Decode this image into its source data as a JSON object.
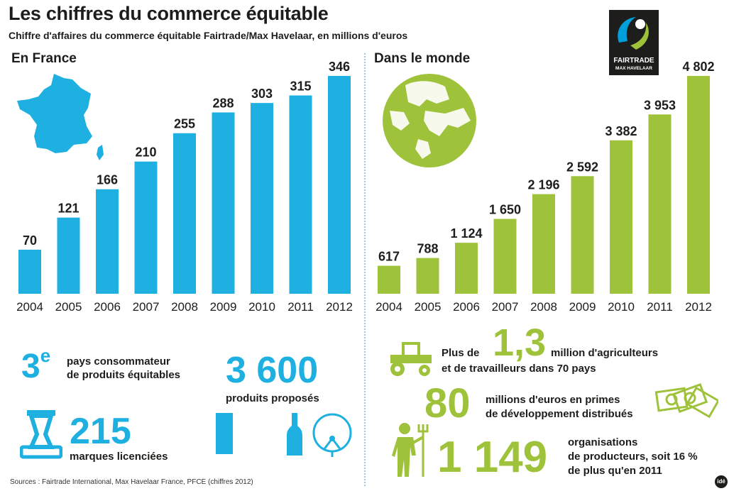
{
  "title": "Les chiffres du commerce équitable",
  "subtitle": "Chiffre d'affaires du commerce équitable Fairtrade/Max Havelaar, en millions d'euros",
  "logo": {
    "line1": "FAIRTRADE",
    "line2": "MAX HAVELAAR"
  },
  "credit": "idé",
  "colors": {
    "france": "#1eb0e0",
    "world": "#9ec23a"
  },
  "icons": [
    "france-map-icon",
    "globe-icon",
    "fairtrade-logo-icon",
    "stamp-icon",
    "milk-carton-icon",
    "bottle-icon",
    "cotton-icon",
    "tractor-icon",
    "banknotes-icon",
    "farmer-icon"
  ],
  "chart_data": [
    {
      "type": "bar",
      "title": "En France",
      "categories": [
        "2004",
        "2005",
        "2006",
        "2007",
        "2008",
        "2009",
        "2010",
        "2011",
        "2012"
      ],
      "values": [
        70,
        121,
        166,
        210,
        255,
        288,
        303,
        315,
        346
      ],
      "value_labels": [
        "70",
        "121",
        "166",
        "210",
        "255",
        "288",
        "303",
        "315",
        "346"
      ],
      "color": "#1eb0e0"
    },
    {
      "type": "bar",
      "title": "Dans le monde",
      "categories": [
        "2004",
        "2005",
        "2006",
        "2007",
        "2008",
        "2009",
        "2010",
        "2011",
        "2012"
      ],
      "values": [
        617,
        788,
        1124,
        1650,
        2196,
        2592,
        3382,
        3953,
        4802
      ],
      "value_labels": [
        "617",
        "788",
        "1 124",
        "1 650",
        "2 196",
        "2 592",
        "3 382",
        "3 953",
        "4 802"
      ],
      "color": "#9ec23a"
    }
  ],
  "france_stats": {
    "rank": "3",
    "rank_sup": "e",
    "rank_text_1": "pays consommateur",
    "rank_text_2": "de produits équitables",
    "products_value": "3 600",
    "products_text": "produits proposés",
    "brands_value": "215",
    "brands_text": "marques licenciées"
  },
  "world_stats": {
    "farmers_prefix": "Plus de",
    "farmers_value": "1,3",
    "farmers_text_1": "million d'agriculteurs",
    "farmers_text_2": "et de travailleurs dans 70 pays",
    "premium_value": "80",
    "premium_text_1": "millions d'euros en primes",
    "premium_text_2": "de développement distribués",
    "orgs_value": "1 149",
    "orgs_text_1": "organisations",
    "orgs_text_2": "de producteurs, soit 16 %",
    "orgs_text_3": "de plus qu'en 2011"
  },
  "sources": "Sources : Fairtrade International, Max Havelaar France, PFCE (chiffres 2012)"
}
